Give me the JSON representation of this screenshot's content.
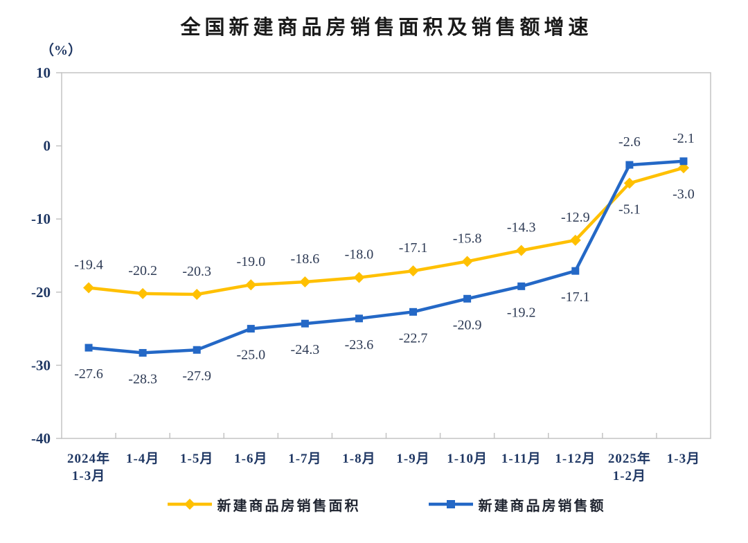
{
  "chart_data": {
    "type": "line",
    "title": "全国新建商品房销售面积及销售额增速",
    "unit_label": "（%）",
    "categories": [
      [
        "2024年",
        "1-3月"
      ],
      [
        "1-4月"
      ],
      [
        "1-5月"
      ],
      [
        "1-6月"
      ],
      [
        "1-7月"
      ],
      [
        "1-8月"
      ],
      [
        "1-9月"
      ],
      [
        "1-10月"
      ],
      [
        "1-11月"
      ],
      [
        "1-12月"
      ],
      [
        "2025年",
        "1-2月"
      ],
      [
        "1-3月"
      ]
    ],
    "y_ticks": [
      10,
      0,
      -10,
      -20,
      -30,
      -40
    ],
    "ylim": [
      -40,
      10
    ],
    "grid": false,
    "legend_position": "bottom",
    "axis_border_color": "#c3c3c3",
    "series": [
      {
        "name": "新建商品房销售面积",
        "color": "#FFC000",
        "marker": "diamond",
        "values": [
          -19.4,
          -20.2,
          -20.3,
          -19.0,
          -18.6,
          -18.0,
          -17.1,
          -15.8,
          -14.3,
          -12.9,
          -5.1,
          -3.0
        ],
        "label_positions": [
          "above",
          "above",
          "above",
          "above",
          "above",
          "above",
          "above",
          "above",
          "above",
          "above",
          "below",
          "below"
        ]
      },
      {
        "name": "新建商品房销售额",
        "color": "#2468C6",
        "marker": "square",
        "values": [
          -27.6,
          -28.3,
          -27.9,
          -25.0,
          -24.3,
          -23.6,
          -22.7,
          -20.9,
          -19.2,
          -17.1,
          -2.6,
          -2.1
        ],
        "label_positions": [
          "below",
          "below",
          "below",
          "below",
          "below",
          "below",
          "below",
          "below",
          "below",
          "below",
          "above",
          "above"
        ]
      }
    ]
  }
}
